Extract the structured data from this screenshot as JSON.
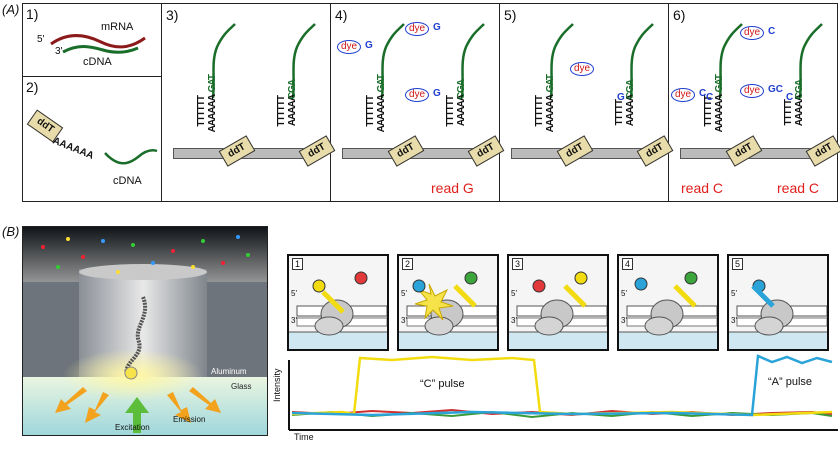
{
  "panel_a": {
    "label": "(A)",
    "step1": {
      "num": "1)",
      "mrna": "mRNA",
      "five": "5'",
      "three": "3'",
      "cdna": "cDNA"
    },
    "step2": {
      "num": "2)",
      "ddt": "ddT",
      "polya": "AAAAAA",
      "cdna": "cDNA"
    },
    "step3": {
      "num": "3)"
    },
    "step4": {
      "num": "4)",
      "read": "read G"
    },
    "step5": {
      "num": "5)"
    },
    "step6": {
      "num": "6)",
      "read1": "read C",
      "read2": "read C"
    },
    "common": {
      "ddt": "ddT",
      "dye": "dye",
      "t6": "TTTTTT",
      "a6": "AAAAAA",
      "t5": "TTTTT",
      "a5": "AAAAA",
      "gat": "GAT",
      "cga": "CGA",
      "g": "G",
      "c": "C",
      "gc": "GC"
    }
  },
  "panel_b": {
    "label": "(B)",
    "aluminum": "Aluminum",
    "glass": "Glass",
    "excitation": "Excitation",
    "emission": "Emission",
    "steps": [
      "1",
      "2",
      "3",
      "4",
      "5"
    ],
    "five_prime": "5'",
    "three_prime": "3'",
    "trace": {
      "ylabel": "Intensity",
      "xlabel": "Time",
      "c_pulse": "“C” pulse",
      "a_pulse": "“A” pulse"
    }
  },
  "colors": {
    "dna_green": "#1a6e2a",
    "red": "#e0201c",
    "blue": "#1f3fd0",
    "yellow": "#f2dc10",
    "cyan": "#29a3d8"
  }
}
